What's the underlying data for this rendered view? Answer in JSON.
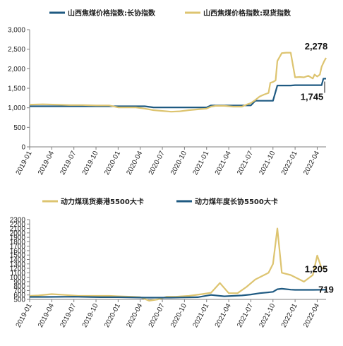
{
  "colors": {
    "contract": "#1f5a82",
    "spot": "#ddc470",
    "axis": "#7f7f7f"
  },
  "chart_data": [
    {
      "type": "line",
      "x_labels": [
        "2019-01",
        "2019-04",
        "2019-07",
        "2019-10",
        "2020-01",
        "2020-04",
        "2020-07",
        "2020-10",
        "2021-01",
        "2021-04",
        "2021-07",
        "2021-10",
        "2022-01",
        "2022-04"
      ],
      "ylim": [
        0,
        3000
      ],
      "yticks": [
        0,
        500,
        1000,
        1500,
        2000,
        2500,
        3000
      ],
      "ytick_labels": [
        "0",
        "500",
        "1,000",
        "1,500",
        "2,000",
        "2,500",
        "3,000"
      ],
      "grid": false,
      "legend_position": "top",
      "series": [
        {
          "name": "山西焦煤价格指数:长协指数",
          "color_key": "contract",
          "x": [
            2019.0,
            2019.2,
            2019.4,
            2019.6,
            2019.8,
            2020.0,
            2020.2,
            2020.3,
            2020.4,
            2020.6,
            2020.8,
            2021.0,
            2021.05,
            2021.3,
            2021.5,
            2021.55,
            2021.75,
            2021.8,
            2021.95,
            2022.0,
            2022.2,
            2022.28,
            2022.3,
            2022.32,
            2022.35
          ],
          "y": [
            1040,
            1040,
            1040,
            1040,
            1040,
            1040,
            1040,
            1040,
            1010,
            1010,
            1010,
            1010,
            1060,
            1060,
            1060,
            1180,
            1180,
            1570,
            1570,
            1580,
            1580,
            1580,
            1580,
            1745,
            1745
          ]
        },
        {
          "name": "山西焦煤价格指数:现货指数",
          "color_key": "spot",
          "x": [
            2019.0,
            2019.15,
            2019.3,
            2019.45,
            2019.6,
            2019.75,
            2019.9,
            2020.0,
            2020.1,
            2020.2,
            2020.3,
            2020.4,
            2020.5,
            2020.6,
            2020.7,
            2020.8,
            2020.9,
            2021.0,
            2021.05,
            2021.1,
            2021.2,
            2021.3,
            2021.4,
            2021.45,
            2021.5,
            2021.55,
            2021.6,
            2021.65,
            2021.7,
            2021.72,
            2021.75,
            2021.78,
            2021.8,
            2021.85,
            2021.9,
            2021.95,
            2022.0,
            2022.05,
            2022.1,
            2022.15,
            2022.2,
            2022.22,
            2022.25,
            2022.28,
            2022.3,
            2022.33,
            2022.35
          ],
          "y": [
            1080,
            1090,
            1080,
            1070,
            1070,
            1060,
            1060,
            1010,
            1010,
            1010,
            980,
            940,
            920,
            900,
            910,
            940,
            960,
            980,
            1030,
            1050,
            1050,
            1030,
            1030,
            1080,
            1120,
            1200,
            1290,
            1340,
            1380,
            1640,
            1660,
            1700,
            2200,
            2400,
            2410,
            2410,
            1780,
            1790,
            1780,
            1820,
            1750,
            1850,
            1800,
            1850,
            2050,
            2200,
            2278
          ]
        }
      ],
      "annotations": [
        {
          "text": "2,278",
          "x": 2022.35,
          "y": 2278
        },
        {
          "text": "1,745",
          "x": 2022.35,
          "y": 1745
        }
      ]
    },
    {
      "type": "line",
      "x_labels": [
        "2019-01",
        "2019-04",
        "2019-07",
        "2019-10",
        "2020-01",
        "2020-04",
        "2020-07",
        "2020-10",
        "2021-01",
        "2021-04",
        "2021-07",
        "2021-10",
        "2022-01",
        "2022-04"
      ],
      "ylim": [
        500,
        2300
      ],
      "yticks": [
        500,
        600,
        700,
        800,
        900,
        1000,
        1100,
        1200,
        1300,
        1400,
        1500,
        1600,
        1700,
        1800,
        1900,
        2000,
        2100,
        2200,
        2300
      ],
      "ytick_labels": [
        "500",
        "600",
        "700",
        "800",
        "900",
        "1000",
        "1100",
        "1200",
        "1300",
        "1400",
        "1500",
        "1600",
        "1700",
        "1800",
        "1900",
        "2000",
        "2100",
        "2200",
        "2300"
      ],
      "grid": false,
      "legend_position": "top",
      "series": [
        {
          "name": "动力煤现货秦港5500大卡",
          "color_key": "spot",
          "x": [
            2019.0,
            2019.1,
            2019.25,
            2019.4,
            2019.55,
            2019.75,
            2019.9,
            2020.0,
            2020.15,
            2020.25,
            2020.35,
            2020.45,
            2020.55,
            2020.65,
            2020.8,
            2020.95,
            2021.05,
            2021.15,
            2021.25,
            2021.35,
            2021.45,
            2021.55,
            2021.65,
            2021.7,
            2021.75,
            2021.8,
            2021.85,
            2021.95,
            2022.0,
            2022.1,
            2022.2,
            2022.25,
            2022.3,
            2022.35
          ],
          "y": [
            580,
            590,
            620,
            600,
            580,
            580,
            580,
            570,
            560,
            550,
            470,
            500,
            560,
            560,
            580,
            620,
            650,
            870,
            640,
            640,
            780,
            950,
            1050,
            1100,
            1300,
            2100,
            1100,
            1050,
            1000,
            900,
            1050,
            1490,
            1200,
            1205
          ]
        },
        {
          "name": "动力煤年度长协5500大卡",
          "color_key": "contract",
          "x": [
            2019.0,
            2019.2,
            2019.5,
            2019.8,
            2020.0,
            2020.3,
            2020.6,
            2020.9,
            2021.05,
            2021.2,
            2021.4,
            2021.5,
            2021.6,
            2021.7,
            2021.75,
            2021.8,
            2021.85,
            2021.95,
            2022.0,
            2022.2,
            2022.35
          ],
          "y": [
            555,
            555,
            560,
            550,
            550,
            540,
            540,
            550,
            600,
            570,
            590,
            610,
            640,
            660,
            670,
            730,
            740,
            720,
            715,
            715,
            719
          ]
        }
      ],
      "annotations": [
        {
          "text": "1,205",
          "x": 2022.35,
          "y": 1205
        },
        {
          "text": "719",
          "x": 2022.35,
          "y": 719
        }
      ]
    }
  ]
}
